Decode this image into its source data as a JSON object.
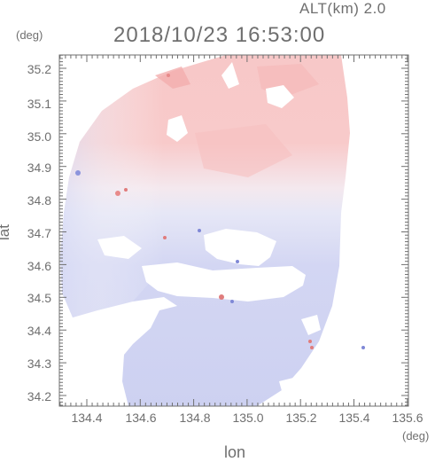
{
  "header": {
    "altitude_label": "ALT(km) 2.0",
    "timestamp": "2018/10/23 16:53:00"
  },
  "units": {
    "y": "(deg)",
    "x": "(deg)"
  },
  "chart_data": {
    "type": "heatmap",
    "title": "2018/10/23 16:53:00",
    "subtitle": "ALT(km) 2.0",
    "xlabel": "lon",
    "ylabel": "lat",
    "xunit": "(deg)",
    "yunit": "(deg)",
    "xlim": [
      134.3,
      135.6
    ],
    "ylim": [
      34.17,
      35.25
    ],
    "x_ticks": [
      "134.4",
      "134.6",
      "134.8",
      "135.0",
      "135.2",
      "135.4",
      "135.6"
    ],
    "y_ticks": [
      "34.2",
      "34.3",
      "34.4",
      "34.5",
      "34.6",
      "34.7",
      "34.8",
      "34.9",
      "35.0",
      "35.1",
      "35.2"
    ],
    "colors": {
      "receding": "#f4b4b4",
      "approaching": "#c8cdf2",
      "neutral": "#f2f0f6",
      "axis": "#6f6f6f"
    }
  }
}
